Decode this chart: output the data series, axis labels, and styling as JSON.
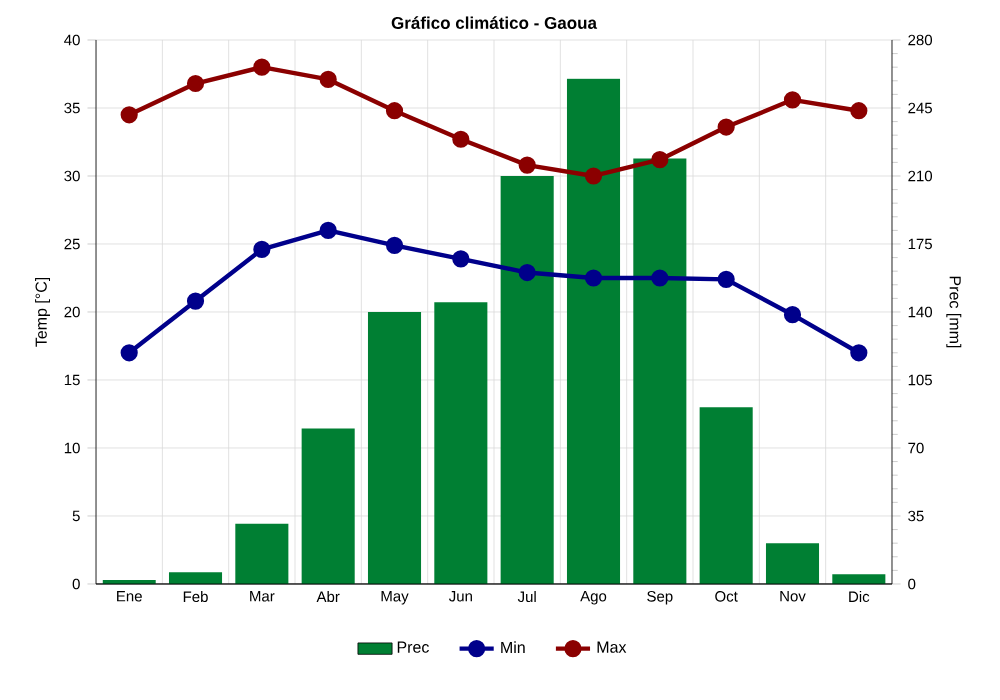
{
  "chart_data": {
    "type": "line",
    "title": "Gráfico climático - Gaoua",
    "categories": [
      "Ene",
      "Feb",
      "Mar",
      "Abr",
      "May",
      "Jun",
      "Jul",
      "Ago",
      "Sep",
      "Oct",
      "Nov",
      "Dic"
    ],
    "series": [
      {
        "name": "Prec",
        "type": "bar",
        "axis": "y2",
        "color": "#007f33",
        "values": [
          2,
          6,
          31,
          80,
          140,
          145,
          210,
          260,
          219,
          91,
          21,
          5
        ]
      },
      {
        "name": "Min",
        "color": "#00008b",
        "values": [
          17,
          20.8,
          24.6,
          26,
          24.9,
          23.9,
          22.9,
          22.5,
          22.5,
          22.4,
          19.8,
          17
        ]
      },
      {
        "name": "Max",
        "color": "#8b0000",
        "values": [
          34.5,
          36.8,
          38,
          37.1,
          34.8,
          32.7,
          30.8,
          30,
          31.2,
          33.6,
          35.6,
          34.8
        ]
      }
    ],
    "ylabel": "Temp [°C]",
    "y2label": "Prec [mm]",
    "ylim": [
      0,
      40
    ],
    "yticks": [
      0,
      5,
      10,
      15,
      20,
      25,
      30,
      35,
      40
    ],
    "y2lim": [
      0,
      280
    ],
    "y2ticks": [
      0,
      35,
      70,
      105,
      140,
      175,
      210,
      245,
      280
    ],
    "grid": true,
    "legend": "bottom",
    "marker": "circle",
    "line_style": "solid"
  }
}
